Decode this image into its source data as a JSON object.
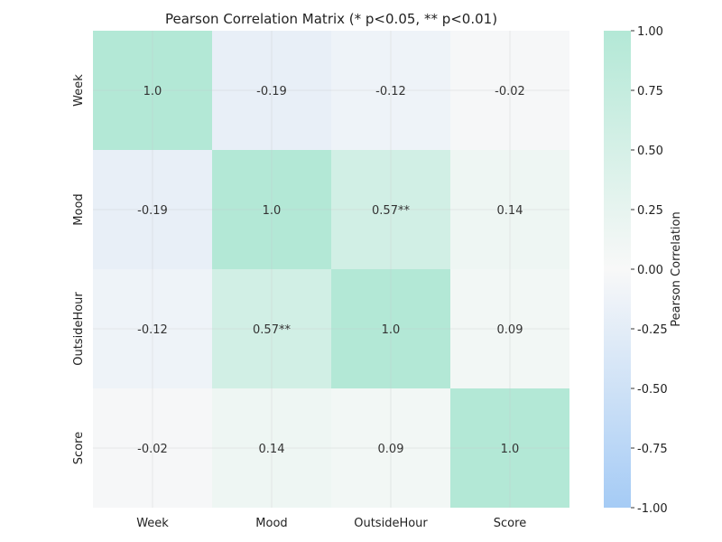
{
  "chart_data": {
    "type": "heatmap",
    "title": "Pearson Correlation Matrix (* p<0.05, ** p<0.01)",
    "xlabel": "",
    "ylabel": "",
    "row_labels": [
      "Week",
      "Mood",
      "OutsideHour",
      "Score"
    ],
    "col_labels": [
      "Week",
      "Mood",
      "OutsideHour",
      "Score"
    ],
    "values": [
      [
        1.0,
        -0.19,
        -0.12,
        -0.02
      ],
      [
        -0.19,
        1.0,
        0.57,
        0.14
      ],
      [
        -0.12,
        0.57,
        1.0,
        0.09
      ],
      [
        -0.02,
        0.14,
        0.09,
        1.0
      ]
    ],
    "annotations": [
      [
        "1.0",
        "-0.19",
        "-0.12",
        "-0.02"
      ],
      [
        "-0.19",
        "1.0",
        "0.57**",
        "0.14"
      ],
      [
        "-0.12",
        "0.57**",
        "1.0",
        "0.09"
      ],
      [
        "-0.02",
        "0.14",
        "0.09",
        "1.0"
      ]
    ],
    "vmin": -1.0,
    "vmax": 1.0,
    "colorbar": {
      "label": "Pearson Correlation",
      "ticks": [
        1.0,
        0.75,
        0.5,
        0.25,
        0.0,
        -0.25,
        -0.5,
        -0.75,
        -1.0
      ],
      "tick_labels": [
        "1.00",
        "0.75",
        "0.50",
        "0.25",
        "0.00",
        "-0.25",
        "-0.50",
        "-0.75",
        "-1.00"
      ]
    },
    "colors": {
      "negative": "#a5cbf5",
      "neutral": "#f8f8f8",
      "positive": "#b3e8d6"
    },
    "grid": true
  }
}
